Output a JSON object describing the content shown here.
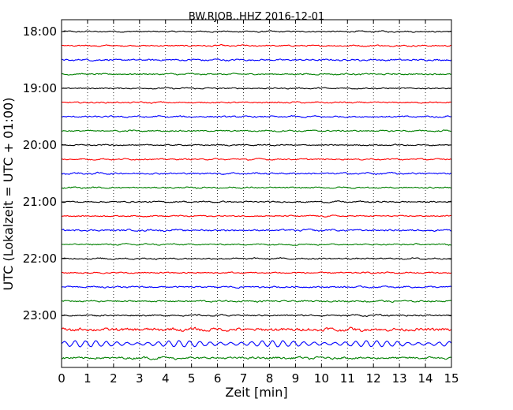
{
  "chart_data": {
    "type": "line",
    "title": "BW.RJOB..HHZ 2016-12-01",
    "xlabel": "Zeit  [min]",
    "ylabel": "UTC (Lokalzeit = UTC + 01:00)",
    "x_range": [
      0,
      15
    ],
    "x_ticks": [
      "0",
      "1",
      "2",
      "3",
      "4",
      "5",
      "6",
      "7",
      "8",
      "9",
      "10",
      "11",
      "12",
      "13",
      "14",
      "15"
    ],
    "y_tick_labels": [
      "18:00",
      "19:00",
      "20:00",
      "21:00",
      "22:00",
      "23:00"
    ],
    "grid": "vertical dotted",
    "trace_minutes": 15,
    "colors": [
      "#000000",
      "#ff0000",
      "#0000ff",
      "#008000"
    ],
    "series": [
      {
        "start": "18:00",
        "amplitude": 0.9
      },
      {
        "start": "18:15",
        "amplitude": 1.0
      },
      {
        "start": "18:30",
        "amplitude": 1.2
      },
      {
        "start": "18:45",
        "amplitude": 1.0
      },
      {
        "start": "19:00",
        "amplitude": 0.9
      },
      {
        "start": "19:15",
        "amplitude": 1.0
      },
      {
        "start": "19:30",
        "amplitude": 1.1
      },
      {
        "start": "19:45",
        "amplitude": 1.0
      },
      {
        "start": "20:00",
        "amplitude": 0.9
      },
      {
        "start": "20:15",
        "amplitude": 1.0
      },
      {
        "start": "20:30",
        "amplitude": 1.2
      },
      {
        "start": "20:45",
        "amplitude": 1.0
      },
      {
        "start": "21:00",
        "amplitude": 1.0
      },
      {
        "start": "21:15",
        "amplitude": 0.9
      },
      {
        "start": "21:30",
        "amplitude": 1.3
      },
      {
        "start": "21:45",
        "amplitude": 1.0
      },
      {
        "start": "22:00",
        "amplitude": 1.0
      },
      {
        "start": "22:15",
        "amplitude": 1.0
      },
      {
        "start": "22:30",
        "amplitude": 1.1
      },
      {
        "start": "22:45",
        "amplitude": 1.1
      },
      {
        "start": "23:00",
        "amplitude": 1.1
      },
      {
        "start": "23:15",
        "amplitude": 2.2
      },
      {
        "start": "23:30",
        "amplitude": 4.5
      },
      {
        "start": "23:45",
        "amplitude": 1.6
      }
    ]
  }
}
